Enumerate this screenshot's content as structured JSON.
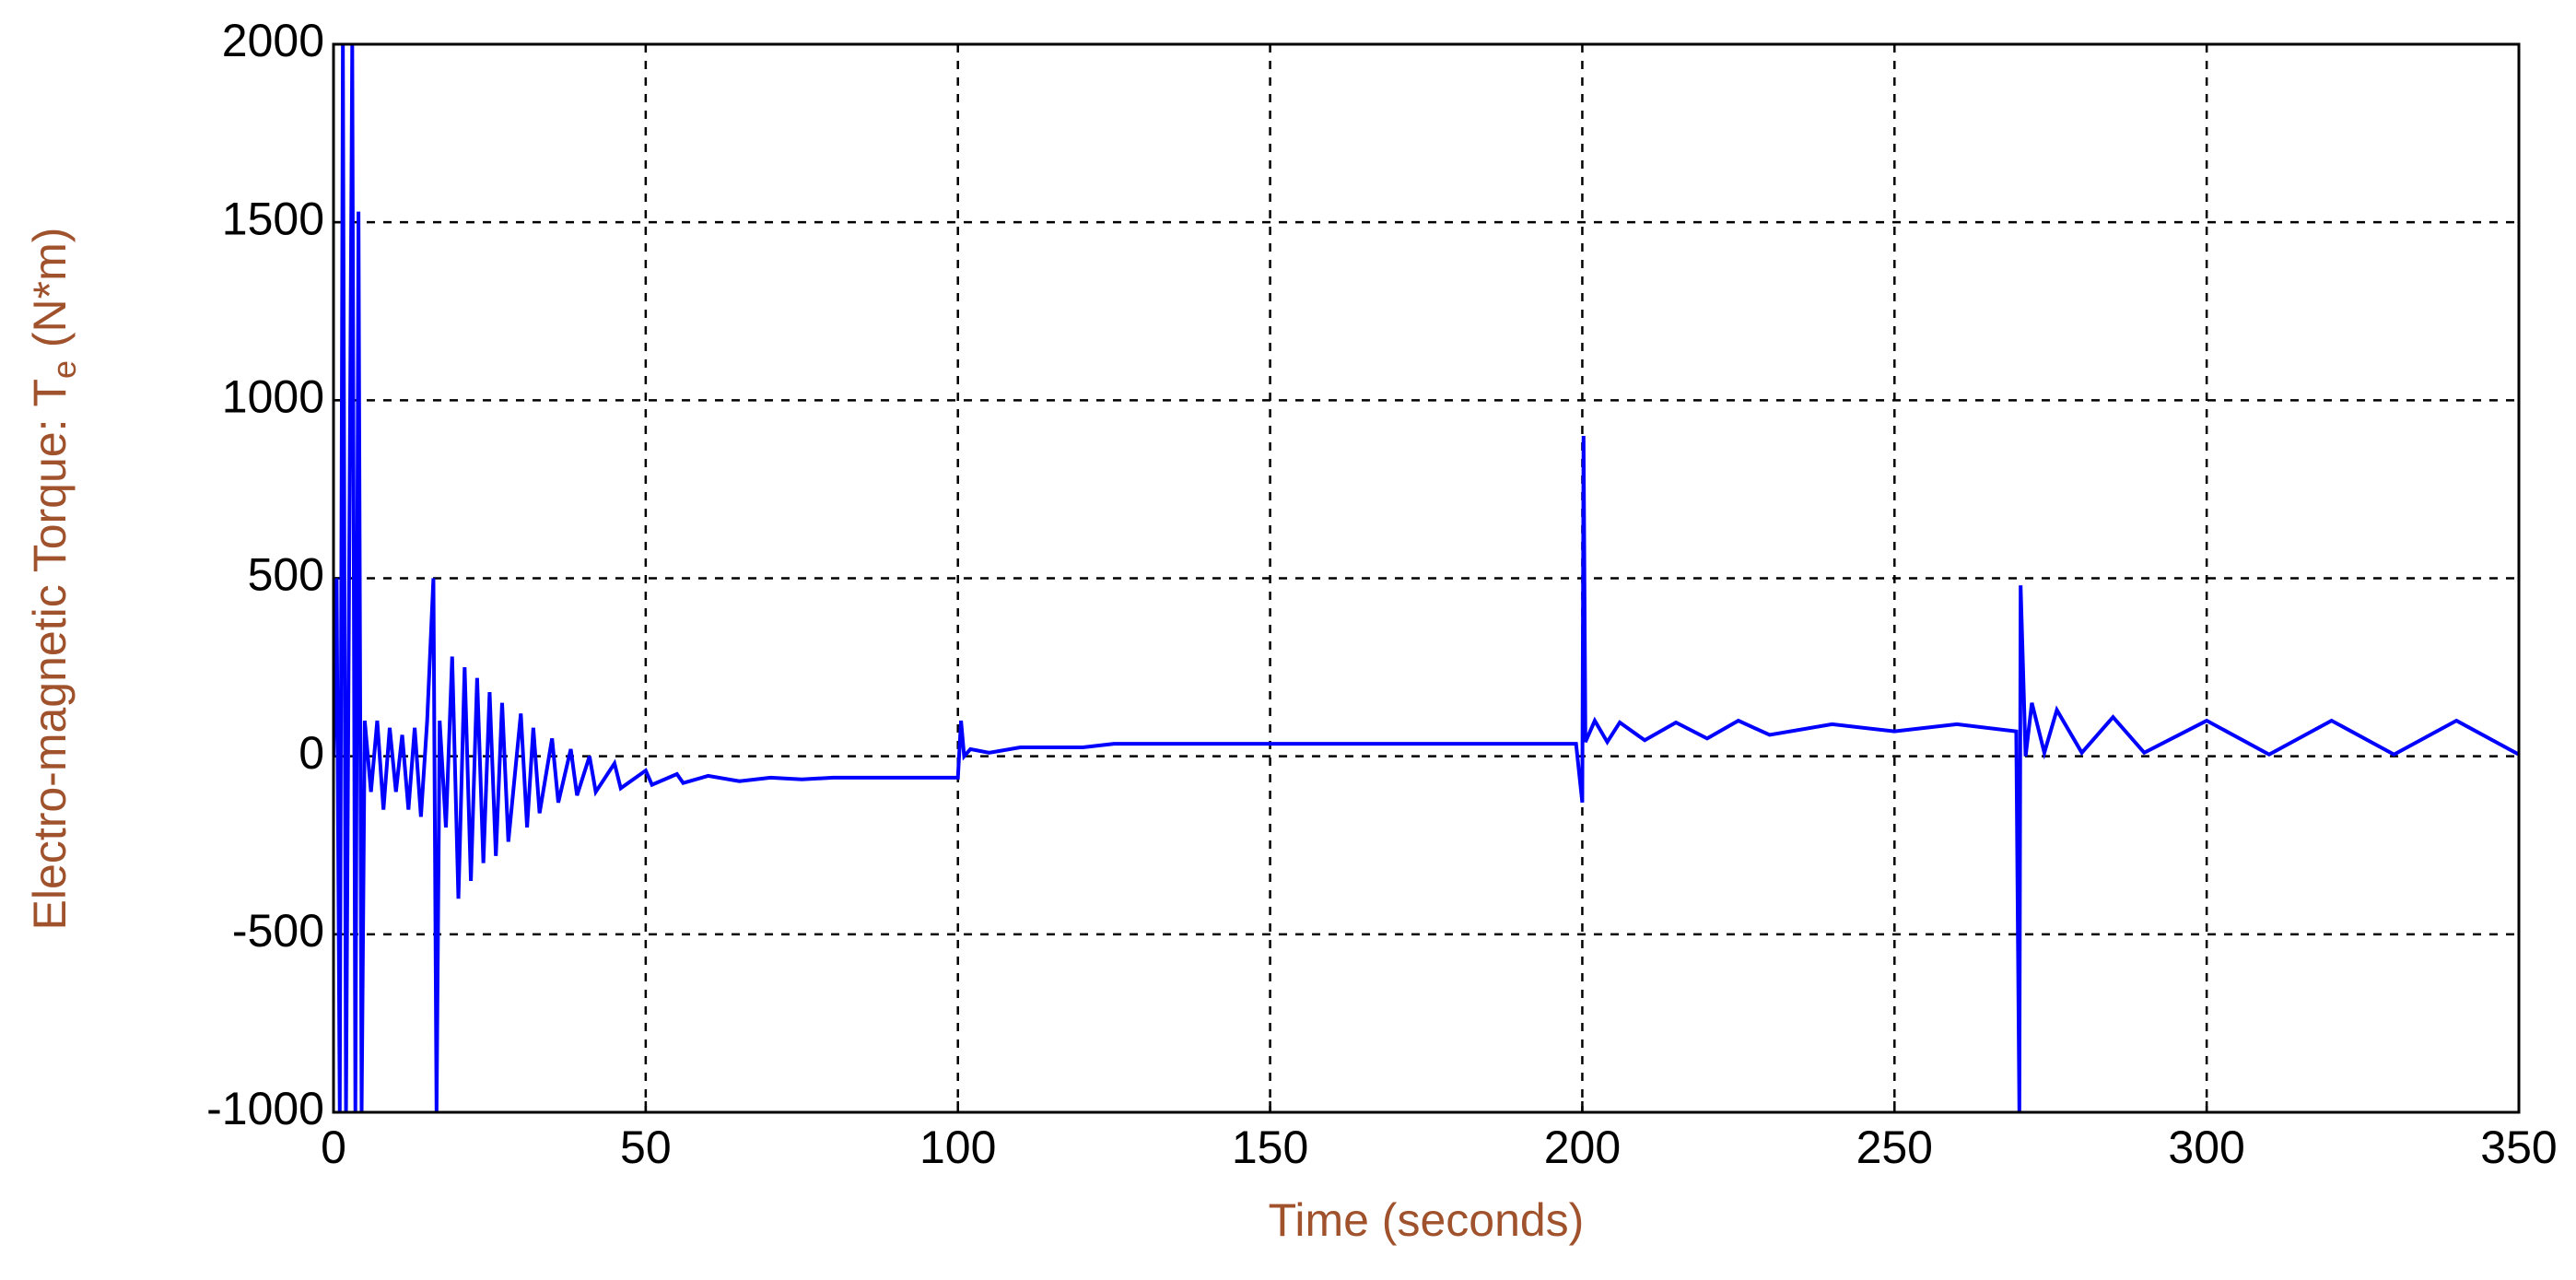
{
  "chart_data": {
    "type": "line",
    "xlabel": "Time (seconds)",
    "ylabel": [
      "Electro-magnetic Torque: T",
      "e",
      " (N*m)"
    ],
    "xlim": [
      0,
      350
    ],
    "xticks": [
      0,
      50,
      100,
      150,
      200,
      250,
      300,
      350
    ],
    "ylim": [
      -1000,
      2000
    ],
    "yticks": [
      -1000,
      -500,
      0,
      500,
      1000,
      1500,
      2000
    ],
    "grid": true,
    "series": [
      {
        "color": "#0000ff",
        "x": [
          0,
          0.5,
          1,
          1.5,
          2,
          3,
          3.5,
          4,
          4.5,
          5,
          6,
          7,
          8,
          9,
          10,
          11,
          12,
          13,
          14,
          15,
          16,
          16.5,
          17,
          18,
          19,
          20,
          21,
          22,
          23,
          24,
          25,
          26,
          27,
          28,
          30,
          31,
          32,
          33,
          35,
          36,
          38,
          39,
          41,
          42,
          45,
          46,
          50,
          51,
          55,
          56,
          60,
          65,
          70,
          75,
          80,
          90,
          100,
          100.5,
          101,
          102,
          105,
          110,
          120,
          125,
          150,
          199,
          200,
          200.2,
          200.5,
          202,
          204,
          206,
          210,
          215,
          220,
          225,
          230,
          240,
          250,
          260,
          269.5,
          270,
          270.2,
          271,
          272,
          274,
          276,
          280,
          285,
          290,
          300,
          310,
          320,
          330,
          340,
          350
        ],
        "values": [
          0,
          500,
          -1000,
          2000,
          -1000,
          2000,
          -1000,
          1530,
          -1000,
          100,
          -100,
          100,
          -150,
          80,
          -100,
          60,
          -150,
          80,
          -170,
          100,
          500,
          -1000,
          100,
          -200,
          280,
          -400,
          250,
          -350,
          220,
          -300,
          180,
          -280,
          150,
          -240,
          120,
          -200,
          80,
          -160,
          50,
          -130,
          20,
          -110,
          0,
          -100,
          -20,
          -90,
          -40,
          -80,
          -50,
          -75,
          -55,
          -70,
          -60,
          -65,
          -60,
          -60,
          -60,
          100,
          0,
          20,
          10,
          25,
          25,
          35,
          35,
          35,
          -130,
          900,
          40,
          100,
          40,
          95,
          45,
          95,
          50,
          100,
          60,
          90,
          70,
          90,
          70,
          -1000,
          480,
          0,
          150,
          10,
          130,
          10,
          110,
          10,
          100,
          5,
          100,
          5,
          100,
          5
        ]
      }
    ]
  }
}
